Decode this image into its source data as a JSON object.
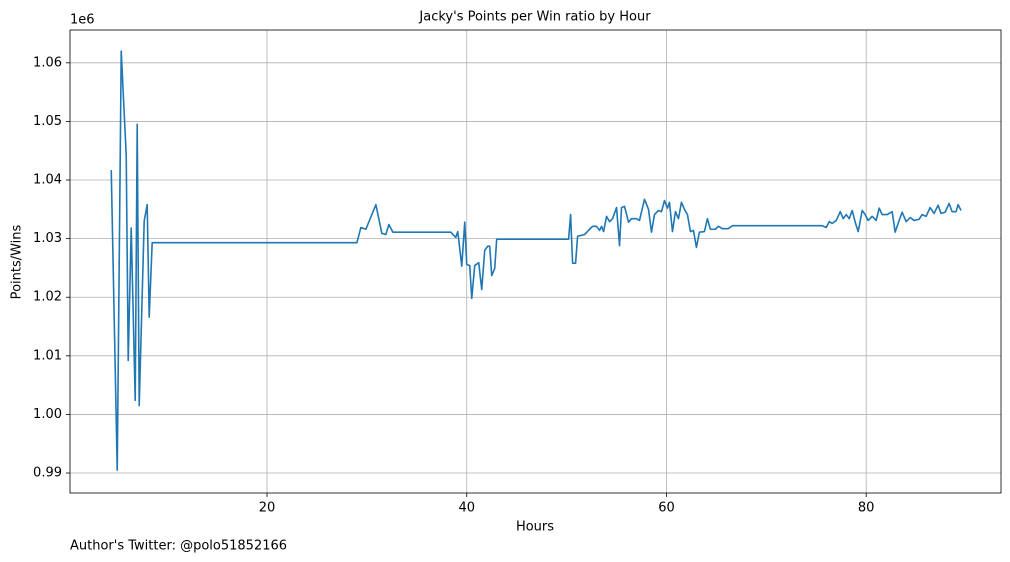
{
  "chart_data": {
    "type": "line",
    "title": "Jacky's Points per Win ratio by Hour",
    "x_label": "Hours",
    "y_label": "Points/Wins",
    "y_offset_label": "1e6",
    "annotation": "Author's Twitter: @polo51852166",
    "grid": true,
    "xlim": [
      0.27,
      93.5
    ],
    "ylim": [
      0.98659,
      1.0656
    ],
    "xticks": [
      20,
      40,
      60,
      80
    ],
    "yticks": [
      0.99,
      {
        "value": 1.0,
        "label": "1.00"
      },
      1.01,
      1.02,
      1.03,
      1.04,
      1.05,
      1.06
    ],
    "x": [
      4.4,
      5.0,
      5.4,
      5.9,
      6.1,
      6.4,
      6.8,
      7.0,
      7.2,
      7.7,
      8.0,
      8.2,
      8.5,
      29.0,
      29.4,
      29.9,
      30.9,
      31.5,
      31.9,
      32.2,
      32.6,
      38.4,
      38.9,
      39.1,
      39.5,
      39.8,
      40.0,
      40.3,
      40.5,
      40.8,
      41.2,
      41.5,
      41.8,
      42.1,
      42.3,
      42.5,
      42.8,
      43.0,
      50.2,
      50.4,
      50.6,
      50.9,
      51.1,
      51.8,
      52.3,
      52.6,
      53.0,
      53.3,
      53.5,
      53.7,
      54.0,
      54.3,
      54.6,
      55.0,
      55.3,
      55.5,
      55.8,
      56.2,
      56.5,
      57.0,
      57.3,
      57.8,
      58.2,
      58.5,
      58.8,
      59.2,
      59.5,
      59.8,
      60.1,
      60.3,
      60.6,
      60.9,
      61.2,
      61.5,
      61.8,
      62.1,
      62.4,
      62.7,
      63.0,
      63.3,
      63.8,
      64.1,
      64.4,
      64.9,
      65.2,
      65.6,
      66.2,
      66.6,
      75.6,
      76.0,
      76.3,
      76.6,
      77.0,
      77.4,
      77.7,
      78.0,
      78.3,
      78.6,
      78.9,
      79.2,
      79.6,
      79.9,
      80.2,
      80.6,
      81.0,
      81.3,
      81.6,
      82.1,
      82.6,
      82.9,
      83.3,
      83.6,
      84.0,
      84.4,
      84.8,
      85.3,
      85.6,
      86.0,
      86.4,
      86.8,
      87.2,
      87.5,
      87.9,
      88.3,
      88.6,
      89.0,
      89.2,
      89.5
    ],
    "series": [
      {
        "color": "#1f77b4",
        "values": [
          1.0417,
          0.9905,
          1.062,
          1.0442,
          1.0092,
          1.0318,
          1.0024,
          1.0495,
          1.0015,
          1.033,
          1.0358,
          1.0166,
          1.0293,
          1.0293,
          1.0319,
          1.0316,
          1.0358,
          1.0309,
          1.0307,
          1.0324,
          1.0311,
          1.0311,
          1.0302,
          1.0312,
          1.0253,
          1.0328,
          1.0256,
          1.0254,
          1.0198,
          1.0254,
          1.0259,
          1.0213,
          1.028,
          1.0287,
          1.0287,
          1.0237,
          1.0249,
          1.0299,
          1.0299,
          1.0341,
          1.0258,
          1.0258,
          1.0304,
          1.0307,
          1.0316,
          1.0321,
          1.0321,
          1.0314,
          1.0321,
          1.0312,
          1.0338,
          1.0329,
          1.0334,
          1.0353,
          1.0288,
          1.0353,
          1.0355,
          1.0328,
          1.0334,
          1.0334,
          1.0331,
          1.0367,
          1.035,
          1.0311,
          1.0341,
          1.0348,
          1.0346,
          1.0365,
          1.0352,
          1.0362,
          1.0312,
          1.0346,
          1.0334,
          1.0362,
          1.035,
          1.0341,
          1.0312,
          1.0314,
          1.0285,
          1.0311,
          1.0312,
          1.0334,
          1.0316,
          1.0316,
          1.0321,
          1.0317,
          1.0317,
          1.0322,
          1.0322,
          1.0319,
          1.0329,
          1.0326,
          1.0331,
          1.0346,
          1.0334,
          1.0341,
          1.0334,
          1.0348,
          1.0328,
          1.0312,
          1.0348,
          1.0341,
          1.0331,
          1.0338,
          1.0331,
          1.0352,
          1.0341,
          1.0341,
          1.0346,
          1.0311,
          1.0331,
          1.0345,
          1.0329,
          1.0336,
          1.0331,
          1.0333,
          1.0341,
          1.0338,
          1.0353,
          1.0343,
          1.0357,
          1.0343,
          1.0345,
          1.036,
          1.0346,
          1.0346,
          1.0358,
          1.0348
        ]
      }
    ]
  }
}
